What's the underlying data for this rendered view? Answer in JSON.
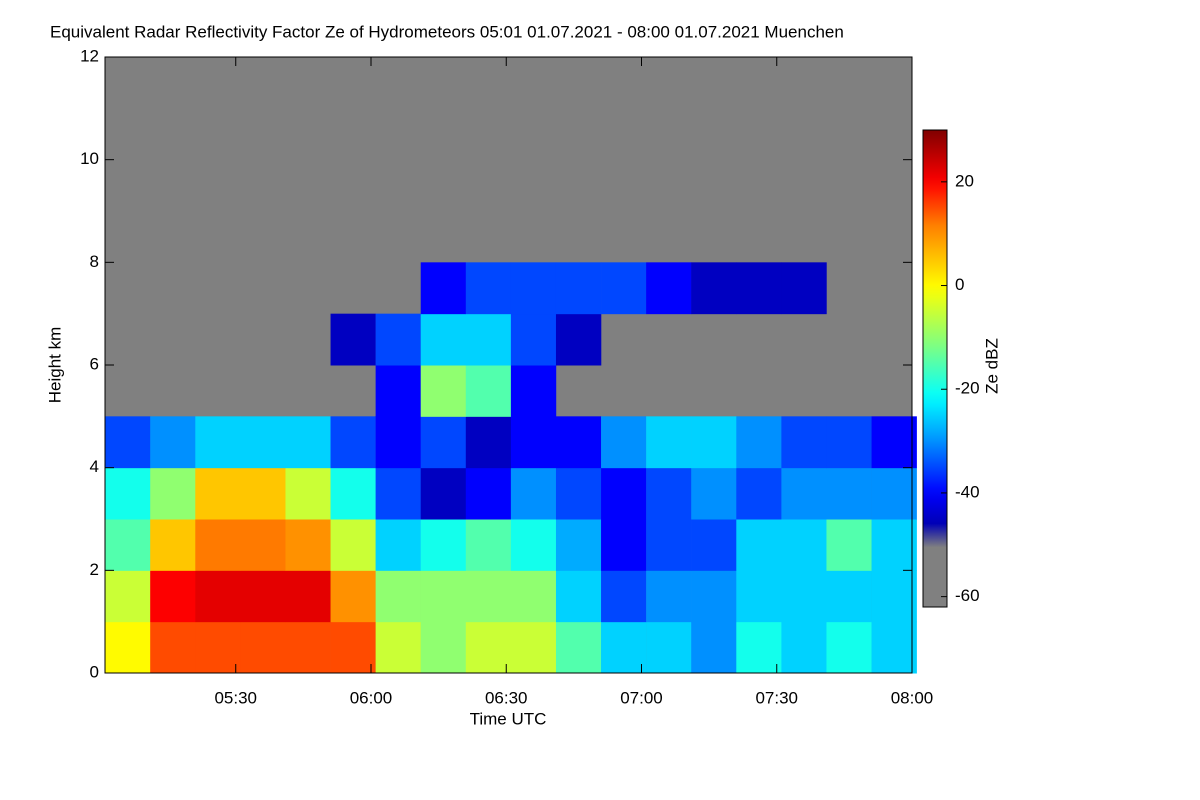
{
  "chart_data": {
    "type": "heatmap",
    "title": "Equivalent Radar Reflectivity Factor Ze of Hydrometeors   05:01 01.07.2021 - 08:00 01.07.2021 Muenchen",
    "x_label": "Time UTC",
    "y_label": "Height km",
    "colorbar_label": "Ze dBZ",
    "xlim": [
      301,
      480
    ],
    "xticks": [
      {
        "value": 330,
        "label": "05:30"
      },
      {
        "value": 360,
        "label": "06:00"
      },
      {
        "value": 390,
        "label": "06:30"
      },
      {
        "value": 420,
        "label": "07:00"
      },
      {
        "value": 450,
        "label": "07:30"
      },
      {
        "value": 480,
        "label": "08:00"
      }
    ],
    "ylim": [
      0,
      12
    ],
    "yticks": [
      0,
      2,
      4,
      6,
      8,
      10,
      12
    ],
    "zlim": [
      -62,
      30
    ],
    "zticks": [
      -60,
      -40,
      -20,
      0,
      20
    ],
    "x": [
      306,
      316,
      326,
      336,
      346,
      356,
      366,
      376,
      386,
      396,
      406,
      416,
      426,
      436,
      446,
      456,
      466,
      476
    ],
    "y": [
      0.5,
      1.5,
      2.5,
      3.5,
      4.5,
      5.5,
      6.5,
      7.5,
      8.5,
      9.5,
      10.5,
      11.5
    ],
    "z": [
      [
        0,
        15,
        15,
        15,
        15,
        15,
        -5,
        -10,
        -5,
        -5,
        -15,
        -25,
        -25,
        -30,
        -20,
        -25,
        -20,
        -25
      ],
      [
        -5,
        20,
        22,
        22,
        22,
        10,
        -10,
        -10,
        -10,
        -10,
        -25,
        -35,
        -30,
        -30,
        -25,
        -25,
        -25,
        -25
      ],
      [
        -15,
        5,
        12,
        12,
        10,
        -5,
        -25,
        -20,
        -15,
        -20,
        -28,
        -40,
        -35,
        -35,
        -25,
        -25,
        -15,
        -25
      ],
      [
        -20,
        -10,
        5,
        5,
        -5,
        -20,
        -35,
        -45,
        -40,
        -30,
        -35,
        -40,
        -35,
        -30,
        -35,
        -30,
        -30,
        -30
      ],
      [
        -35,
        -30,
        -25,
        -25,
        -25,
        -35,
        -40,
        -35,
        -45,
        -40,
        -40,
        -30,
        -25,
        -25,
        -30,
        -35,
        -35,
        -40
      ],
      [
        null,
        null,
        null,
        null,
        null,
        null,
        -40,
        -10,
        -15,
        -40,
        null,
        null,
        null,
        null,
        null,
        null,
        null,
        null
      ],
      [
        null,
        null,
        null,
        null,
        null,
        -45,
        -35,
        -25,
        -25,
        -35,
        -45,
        null,
        null,
        null,
        null,
        null,
        null,
        null
      ],
      [
        null,
        null,
        null,
        null,
        null,
        null,
        null,
        -40,
        -35,
        -35,
        -35,
        -35,
        -40,
        -45,
        -45,
        -45,
        null,
        null
      ],
      [
        null,
        null,
        null,
        null,
        null,
        null,
        null,
        null,
        null,
        null,
        null,
        null,
        null,
        null,
        null,
        null,
        null,
        null
      ],
      [
        null,
        null,
        null,
        null,
        null,
        null,
        null,
        null,
        null,
        null,
        null,
        null,
        null,
        null,
        null,
        null,
        null,
        null
      ],
      [
        null,
        null,
        null,
        null,
        null,
        null,
        null,
        null,
        null,
        null,
        null,
        null,
        null,
        null,
        null,
        null,
        null,
        null
      ],
      [
        null,
        null,
        null,
        null,
        null,
        null,
        null,
        null,
        null,
        null,
        null,
        null,
        null,
        null,
        null,
        null,
        null,
        null
      ]
    ],
    "missing_color": "#808080"
  }
}
